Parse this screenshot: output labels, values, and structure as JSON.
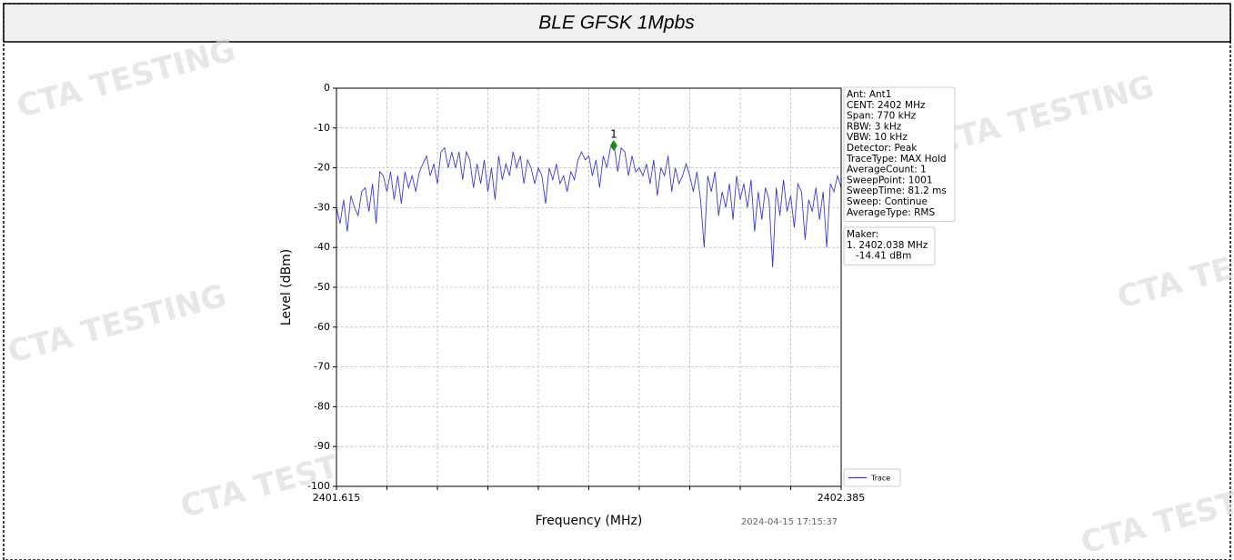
{
  "chart_data": {
    "type": "line",
    "title": "BLE GFSK 1Mpbs",
    "xlabel": "Frequency (MHz)",
    "ylabel": "Level (dBm)",
    "xlim": [
      2401.615,
      2402.385
    ],
    "xticks": [
      2401.615,
      {
        "value": 2401.692,
        "label": null
      },
      {
        "value": 2401.769,
        "label": null
      },
      {
        "value": 2401.846,
        "label": null
      },
      {
        "value": 2401.923,
        "label": null
      },
      {
        "value": 2402.0,
        "label": null
      },
      {
        "value": 2402.077,
        "label": null
      },
      {
        "value": 2402.154,
        "label": null
      },
      {
        "value": 2402.231,
        "label": null
      },
      {
        "value": 2402.308,
        "label": null
      },
      2402.385
    ],
    "ylim": [
      -100,
      0
    ],
    "yticks": [
      0,
      -10,
      -20,
      -30,
      -40,
      -50,
      -60,
      -70,
      -80,
      -90,
      -100
    ],
    "grid": true,
    "legend": "lower right",
    "x": [
      2401.615,
      2401.6205,
      2401.626,
      2401.6315,
      2401.637,
      2401.6425,
      2401.648,
      2401.6535,
      2401.659,
      2401.6645,
      2401.67,
      2401.6755,
      2401.681,
      2401.6865,
      2401.692,
      2401.6975,
      2401.703,
      2401.7085,
      2401.714,
      2401.7195,
      2401.725,
      2401.7305,
      2401.736,
      2401.7415,
      2401.747,
      2401.7525,
      2401.758,
      2401.7635,
      2401.769,
      2401.7745,
      2401.78,
      2401.7855,
      2401.791,
      2401.7965,
      2401.802,
      2401.8075,
      2401.813,
      2401.8185,
      2401.824,
      2401.8295,
      2401.835,
      2401.8405,
      2401.846,
      2401.8515,
      2401.857,
      2401.8625,
      2401.868,
      2401.8735,
      2401.879,
      2401.8845,
      2401.89,
      2401.8955,
      2401.901,
      2401.9065,
      2401.912,
      2401.9175,
      2401.923,
      2401.9285,
      2401.934,
      2401.9395,
      2401.945,
      2401.9505,
      2401.956,
      2401.9615,
      2401.967,
      2401.9725,
      2401.978,
      2401.9835,
      2401.989,
      2401.9945,
      2402.0,
      2402.0055,
      2402.011,
      2402.0165,
      2402.022,
      2402.0275,
      2402.033,
      2402.0385,
      2402.044,
      2402.0495,
      2402.055,
      2402.0605,
      2402.066,
      2402.0715,
      2402.077,
      2402.0825,
      2402.088,
      2402.0935,
      2402.099,
      2402.1045,
      2402.11,
      2402.1155,
      2402.121,
      2402.1265,
      2402.132,
      2402.1375,
      2402.143,
      2402.1485,
      2402.154,
      2402.1595,
      2402.165,
      2402.1705,
      2402.176,
      2402.1815,
      2402.187,
      2402.1925,
      2402.198,
      2402.2035,
      2402.209,
      2402.2145,
      2402.22,
      2402.2255,
      2402.231,
      2402.2365,
      2402.242,
      2402.2475,
      2402.253,
      2402.2585,
      2402.264,
      2402.2695,
      2402.275,
      2402.2805,
      2402.286,
      2402.2915,
      2402.297,
      2402.3025,
      2402.308,
      2402.3135,
      2402.319,
      2402.3245,
      2402.33,
      2402.3355,
      2402.341,
      2402.3465,
      2402.352,
      2402.3575,
      2402.363,
      2402.3685,
      2402.374,
      2402.3795,
      2402.385
    ],
    "series": [
      {
        "name": "Trace",
        "color": "#3a3ad6",
        "values": [
          -30,
          -34,
          -28,
          -36,
          -27,
          -30,
          -32,
          -26,
          -25,
          -31,
          -24,
          -34,
          -21,
          -22,
          -26,
          -21,
          -28,
          -22,
          -29,
          -21,
          -25,
          -22,
          -26,
          -21,
          -19,
          -17,
          -22,
          -19,
          -24,
          -16,
          -15,
          -20,
          -16,
          -20,
          -16,
          -23,
          -16,
          -18,
          -25,
          -19,
          -24,
          -18,
          -26,
          -20,
          -28,
          -17,
          -23,
          -19,
          -22,
          -16,
          -20,
          -17,
          -24,
          -18,
          -20,
          -24,
          -20,
          -22,
          -29,
          -20,
          -23,
          -19,
          -24,
          -22,
          -26,
          -21,
          -23,
          -18,
          -16,
          -18,
          -17,
          -22,
          -18,
          -25,
          -17,
          -20,
          -15,
          -14,
          -21,
          -15,
          -16,
          -22,
          -17,
          -21,
          -20,
          -22,
          -19,
          -24,
          -18,
          -27,
          -20,
          -22,
          -17,
          -26,
          -20,
          -24,
          -22,
          -19,
          -22,
          -26,
          -21,
          -28,
          -40,
          -22,
          -26,
          -21,
          -32,
          -26,
          -30,
          -24,
          -33,
          -22,
          -28,
          -24,
          -30,
          -23,
          -36,
          -26,
          -33,
          -25,
          -28,
          -45,
          -25,
          -32,
          -23,
          -31,
          -27,
          -35,
          -24,
          -26,
          -38,
          -28,
          -31,
          -25,
          -33,
          -26,
          -40,
          -24,
          -26,
          -22,
          -25
        ]
      }
    ],
    "markers": [
      {
        "label": "1",
        "x": 2402.038,
        "y": -14.41,
        "color": "#1a8a1a"
      }
    ],
    "info_box": [
      "Ant: Ant1",
      "CENT: 2402 MHz",
      "Span: 770 kHz",
      "RBW: 3 kHz",
      "VBW: 10 kHz",
      "Detector: Peak",
      "TraceType: MAX Hold",
      "AverageCount: 1",
      "SweepPoint: 1001",
      "SweepTime: 81.2 ms",
      "Sweep: Continue",
      "AverageType: RMS"
    ],
    "marker_box": [
      "Maker:",
      "1. 2402.038 MHz",
      "   -14.41 dBm"
    ],
    "timestamp": "2024-04-15 17:15:37",
    "watermark": "CTA TESTING"
  }
}
